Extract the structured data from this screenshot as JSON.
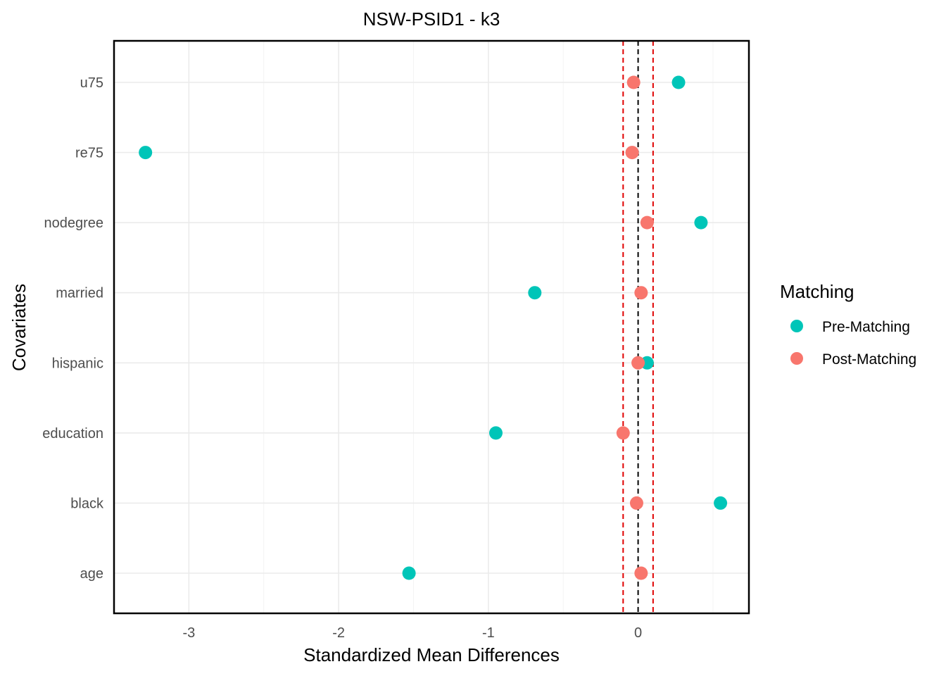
{
  "chart_data": {
    "type": "scatter",
    "title": "NSW-PSID1 - k3",
    "xlabel": "Standardized Mean Differences",
    "ylabel": "Covariates",
    "categories": [
      "age",
      "black",
      "education",
      "hispanic",
      "married",
      "nodegree",
      "re75",
      "u75"
    ],
    "x_ticks": [
      -3,
      -2,
      -1,
      0
    ],
    "xlim": [
      -3.5,
      0.74
    ],
    "reference_lines": [
      {
        "x": 0,
        "style": "dashed",
        "color": "#000000"
      },
      {
        "x": -0.1,
        "style": "dashed",
        "color": "#e00000"
      },
      {
        "x": 0.1,
        "style": "dashed",
        "color": "#e00000"
      }
    ],
    "series": [
      {
        "name": "Pre-Matching",
        "color": "#00c5b8",
        "values": [
          -1.53,
          0.55,
          -0.95,
          0.06,
          -0.69,
          0.42,
          -3.29,
          0.27
        ]
      },
      {
        "name": "Post-Matching",
        "color": "#f8766d",
        "values": [
          0.02,
          -0.01,
          -0.1,
          0.0,
          0.02,
          0.06,
          -0.04,
          -0.03
        ]
      }
    ],
    "legend": {
      "title": "Matching",
      "position": "right"
    },
    "grid": true
  }
}
